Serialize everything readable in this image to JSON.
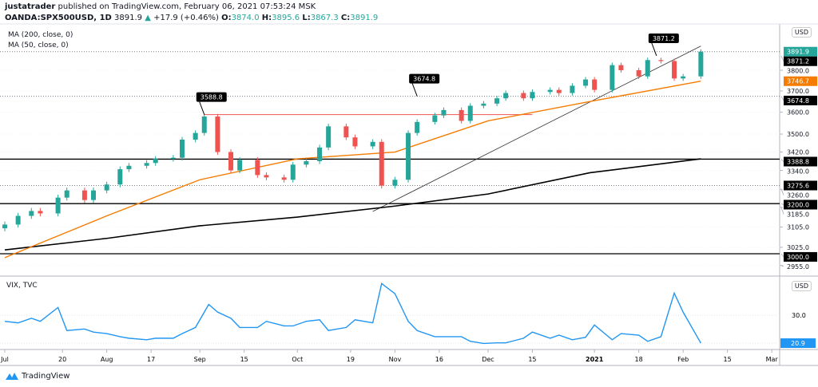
{
  "header": {
    "author": "justatrader",
    "published": "published on TradingView.com, February 06, 2021 07:53:24 MSK",
    "symbol": "OANDA:SPX500USD, 1D",
    "last": "3891.9",
    "change": "+17.9 (+0.46%)",
    "o_label": "O:",
    "o": "3874.0",
    "h_label": "H:",
    "h": "3895.6",
    "l_label": "L:",
    "l": "3867.3",
    "c_label": "C:",
    "c": "3891.9"
  },
  "legend": {
    "ma200": "MA (200, close, 0)",
    "ma50": "MA (50, close, 0)",
    "vix": "VIX, TVC"
  },
  "currency": "USD",
  "brand": "TradingView",
  "colors": {
    "up": "#26a69a",
    "down": "#ef5350",
    "ma50": "#f57c00",
    "ma200": "#000000",
    "vix": "#2196f3",
    "resistance": "#ef5350"
  },
  "chart_data": [
    {
      "type": "candlestick",
      "scale": "log",
      "closes": [
        [
          "2020-07-01",
          3115
        ],
        [
          "2020-07-05",
          3150
        ],
        [
          "2020-07-09",
          3170
        ],
        [
          "2020-07-13",
          3160
        ],
        [
          "2020-07-17",
          3225
        ],
        [
          "2020-07-21",
          3255
        ],
        [
          "2020-07-25",
          3215
        ],
        [
          "2020-07-29",
          3255
        ],
        [
          "2020-08-02",
          3280
        ],
        [
          "2020-08-06",
          3345
        ],
        [
          "2020-08-10",
          3360
        ],
        [
          "2020-08-14",
          3372
        ],
        [
          "2020-08-18",
          3390
        ],
        [
          "2020-08-22",
          3395
        ],
        [
          "2020-08-26",
          3475
        ],
        [
          "2020-08-30",
          3505
        ],
        [
          "2020-09-02",
          3580
        ],
        [
          "2020-09-06",
          3420
        ],
        [
          "2020-09-10",
          3340
        ],
        [
          "2020-09-14",
          3385
        ],
        [
          "2020-09-18",
          3320
        ],
        [
          "2020-09-22",
          3310
        ],
        [
          "2020-09-26",
          3300
        ],
        [
          "2020-09-30",
          3365
        ],
        [
          "2020-10-04",
          3380
        ],
        [
          "2020-10-08",
          3440
        ],
        [
          "2020-10-12",
          3535
        ],
        [
          "2020-10-16",
          3485
        ],
        [
          "2020-10-20",
          3445
        ],
        [
          "2020-10-24",
          3465
        ],
        [
          "2020-10-28",
          3275
        ],
        [
          "2020-11-01",
          3300
        ],
        [
          "2020-11-05",
          3505
        ],
        [
          "2020-11-09",
          3555
        ],
        [
          "2020-11-13",
          3585
        ],
        [
          "2020-11-17",
          3610
        ],
        [
          "2020-11-21",
          3560
        ],
        [
          "2020-11-25",
          3630
        ],
        [
          "2020-11-29",
          3640
        ],
        [
          "2020-12-03",
          3665
        ],
        [
          "2020-12-07",
          3690
        ],
        [
          "2020-12-11",
          3665
        ],
        [
          "2020-12-15",
          3695
        ],
        [
          "2020-12-19",
          3705
        ],
        [
          "2020-12-23",
          3690
        ],
        [
          "2020-12-27",
          3725
        ],
        [
          "2020-12-31",
          3755
        ],
        [
          "2021-01-04",
          3705
        ],
        [
          "2021-01-08",
          3825
        ],
        [
          "2021-01-12",
          3800
        ],
        [
          "2021-01-16",
          3770
        ],
        [
          "2021-01-20",
          3850
        ],
        [
          "2021-01-24",
          3845
        ],
        [
          "2021-01-28",
          3760
        ],
        [
          "2021-02-01",
          3770
        ],
        [
          "2021-02-05",
          3891.9
        ]
      ],
      "ma200": [
        [
          "2020-07-01",
          3015
        ],
        [
          "2020-08-01",
          3060
        ],
        [
          "2020-09-01",
          3110
        ],
        [
          "2020-10-01",
          3145
        ],
        [
          "2020-11-01",
          3190
        ],
        [
          "2020-12-01",
          3240
        ],
        [
          "2021-01-01",
          3330
        ],
        [
          "2021-02-05",
          3390
        ]
      ],
      "ma50": [
        [
          "2020-07-01",
          2985
        ],
        [
          "2020-08-01",
          3150
        ],
        [
          "2020-09-01",
          3300
        ],
        [
          "2020-10-01",
          3390
        ],
        [
          "2020-11-01",
          3420
        ],
        [
          "2020-12-01",
          3560
        ],
        [
          "2021-01-01",
          3650
        ],
        [
          "2021-02-05",
          3746.7
        ]
      ],
      "hlines": [
        3388.8,
        3200.0,
        3000.0
      ],
      "dotted_levels": [
        3891.9,
        3674.8,
        3275.6
      ],
      "resistance": {
        "price": 3588.8,
        "from": "2020-09-02",
        "to": "2020-12-15"
      },
      "trendline": [
        [
          "2020-10-25",
          3168
        ],
        [
          "2021-02-05",
          3920
        ]
      ],
      "callouts": [
        {
          "date": "2020-09-02",
          "price": 3588.8,
          "text": "3588.8"
        },
        {
          "date": "2020-11-09",
          "price": 3674.8,
          "text": "3674.8"
        },
        {
          "date": "2021-01-22",
          "price": 3871.2,
          "text": "3871.2"
        }
      ],
      "y_ticks": [
        "3800.0",
        "3700.0",
        "3600.0",
        "3500.0",
        "3420.0",
        "3340.0",
        "3260.0",
        "3185.0",
        "3105.0",
        "3025.0",
        "2955.0"
      ],
      "axis_badges": [
        {
          "v": "3891.9",
          "c": "#26a69a"
        },
        {
          "v": "3871.2",
          "c": "#000000"
        },
        {
          "v": "3746.7",
          "c": "#f57c00"
        },
        {
          "v": "3674.8",
          "c": "#000000"
        },
        {
          "v": "3388.8",
          "c": "#000000"
        },
        {
          "v": "3275.6",
          "c": "#000000"
        },
        {
          "v": "3200.0",
          "c": "#000000"
        },
        {
          "v": "3000.0",
          "c": "#000000"
        }
      ]
    },
    {
      "type": "line",
      "name": "VIX, TVC",
      "values": [
        [
          "2020-07-01",
          28
        ],
        [
          "2020-07-05",
          27.5
        ],
        [
          "2020-07-09",
          29
        ],
        [
          "2020-07-13",
          28
        ],
        [
          "2020-07-17",
          32.5
        ],
        [
          "2020-07-21",
          25
        ],
        [
          "2020-07-25",
          25.5
        ],
        [
          "2020-07-29",
          24.5
        ],
        [
          "2020-08-02",
          24
        ],
        [
          "2020-08-06",
          23
        ],
        [
          "2020-08-10",
          22.5
        ],
        [
          "2020-08-14",
          22
        ],
        [
          "2020-08-18",
          22.5
        ],
        [
          "2020-08-22",
          22.5
        ],
        [
          "2020-08-26",
          24
        ],
        [
          "2020-08-30",
          26
        ],
        [
          "2020-09-03",
          33.5
        ],
        [
          "2020-09-06",
          31
        ],
        [
          "2020-09-10",
          29
        ],
        [
          "2020-09-14",
          26
        ],
        [
          "2020-09-18",
          26
        ],
        [
          "2020-09-22",
          28
        ],
        [
          "2020-09-26",
          26.5
        ],
        [
          "2020-09-30",
          26.5
        ],
        [
          "2020-10-04",
          28
        ],
        [
          "2020-10-08",
          28.5
        ],
        [
          "2020-10-12",
          25
        ],
        [
          "2020-10-16",
          26
        ],
        [
          "2020-10-20",
          28.5
        ],
        [
          "2020-10-24",
          27.5
        ],
        [
          "2020-10-28",
          40.3
        ],
        [
          "2020-11-01",
          37
        ],
        [
          "2020-11-05",
          28
        ],
        [
          "2020-11-09",
          25
        ],
        [
          "2020-11-13",
          23
        ],
        [
          "2020-11-17",
          23
        ],
        [
          "2020-11-21",
          23
        ],
        [
          "2020-11-25",
          21.5
        ],
        [
          "2020-11-29",
          20.8
        ],
        [
          "2020-12-03",
          21
        ],
        [
          "2020-12-07",
          21
        ],
        [
          "2020-12-11",
          22.5
        ],
        [
          "2020-12-15",
          24.5
        ],
        [
          "2020-12-19",
          22.5
        ],
        [
          "2020-12-23",
          23.5
        ],
        [
          "2020-12-27",
          22
        ],
        [
          "2020-12-31",
          22.8
        ],
        [
          "2021-01-04",
          26.8
        ],
        [
          "2021-01-08",
          22
        ],
        [
          "2021-01-12",
          24
        ],
        [
          "2021-01-16",
          23.5
        ],
        [
          "2021-01-20",
          21.5
        ],
        [
          "2021-01-24",
          23
        ],
        [
          "2021-01-28",
          37.2
        ],
        [
          "2021-02-01",
          31
        ],
        [
          "2021-02-05",
          20.9
        ]
      ],
      "y_ticks": [
        "30.0"
      ],
      "last": "20.9"
    }
  ],
  "x_ticks": [
    [
      "2020-07-01",
      "Jul"
    ],
    [
      "2020-07-20",
      "20"
    ],
    [
      "2020-08-03",
      "Aug"
    ],
    [
      "2020-08-17",
      "17"
    ],
    [
      "2020-09-01",
      "Sep"
    ],
    [
      "2020-09-15",
      "15"
    ],
    [
      "2020-10-01",
      "Oct"
    ],
    [
      "2020-10-19",
      "19"
    ],
    [
      "2020-11-02",
      "Nov"
    ],
    [
      "2020-11-16",
      "16"
    ],
    [
      "2020-12-01",
      "Dec"
    ],
    [
      "2020-12-15",
      "15"
    ],
    [
      "2021-01-04",
      "2021"
    ],
    [
      "2021-01-18",
      "18"
    ],
    [
      "2021-02-01",
      "Feb"
    ],
    [
      "2021-02-15",
      "15"
    ],
    [
      "2021-03-01",
      "Mar"
    ]
  ]
}
